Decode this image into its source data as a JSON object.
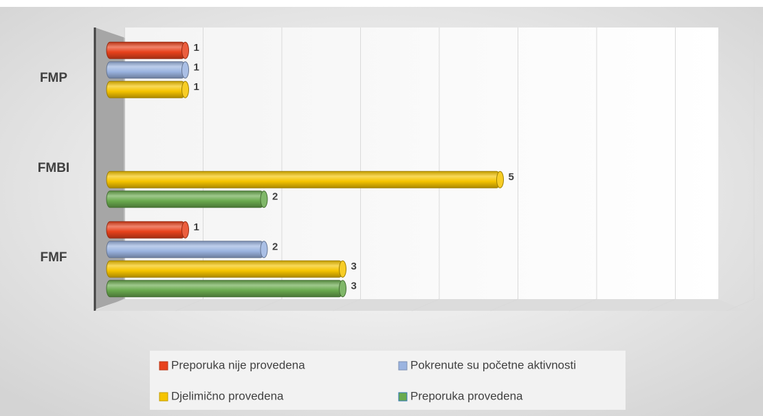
{
  "chart_data": {
    "type": "bar3d",
    "orientation": "horizontal",
    "categories": [
      "FMP",
      "FMBI",
      "FMF"
    ],
    "series": [
      {
        "name": "Preporuka nije provedena",
        "color": "#e8421c",
        "values": [
          1,
          null,
          1
        ]
      },
      {
        "name": "Pokrenute su početne aktivnosti",
        "color": "#9bb4e0",
        "values": [
          1,
          null,
          2
        ]
      },
      {
        "name": "Djelimično provedena",
        "color": "#f5c400",
        "values": [
          1,
          5,
          3
        ]
      },
      {
        "name": "Preporuka provedena",
        "color": "#6aaa4e",
        "values": [
          null,
          2,
          3
        ]
      }
    ],
    "xlim": [
      0,
      8
    ],
    "xticks": [
      0,
      1,
      2,
      3,
      4,
      5,
      6,
      7,
      8
    ],
    "grid": true,
    "legend": "bottom"
  }
}
